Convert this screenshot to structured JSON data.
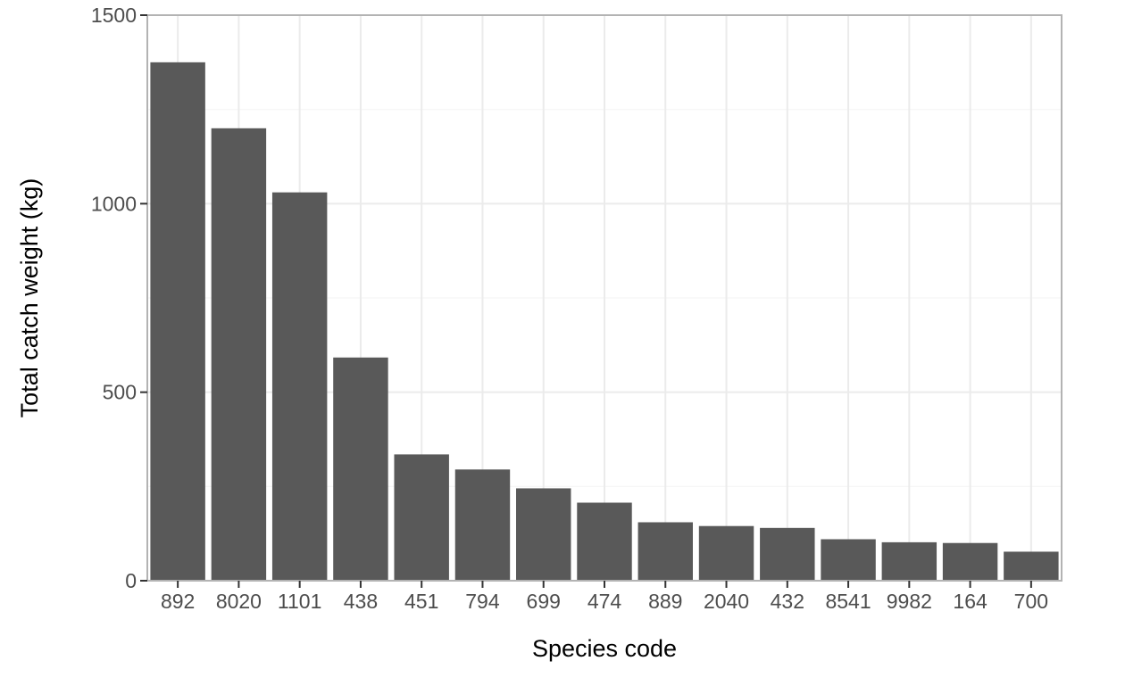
{
  "chart_data": {
    "type": "bar",
    "title": "",
    "xlabel": "Species code",
    "ylabel": "Total catch weight (kg)",
    "categories": [
      "892",
      "8020",
      "1101",
      "438",
      "451",
      "794",
      "699",
      "474",
      "889",
      "2040",
      "432",
      "8541",
      "9982",
      "164",
      "700"
    ],
    "values": [
      1375,
      1200,
      1030,
      592,
      335,
      295,
      245,
      207,
      155,
      145,
      140,
      110,
      102,
      100,
      77
    ],
    "ylim": [
      0,
      1500
    ],
    "yticks": [
      0,
      500,
      1000,
      1500
    ],
    "ytick_labels": [
      "0",
      "500",
      "1000",
      "1500"
    ],
    "grid": true,
    "legend": "none",
    "colors": {
      "bar": "#595959",
      "grid_major": "#ebebeb",
      "grid_minor": "#f5f5f5",
      "panel_border": "#b3b3b3",
      "axis_text": "#4d4d4d",
      "axis_title": "#000000"
    }
  }
}
